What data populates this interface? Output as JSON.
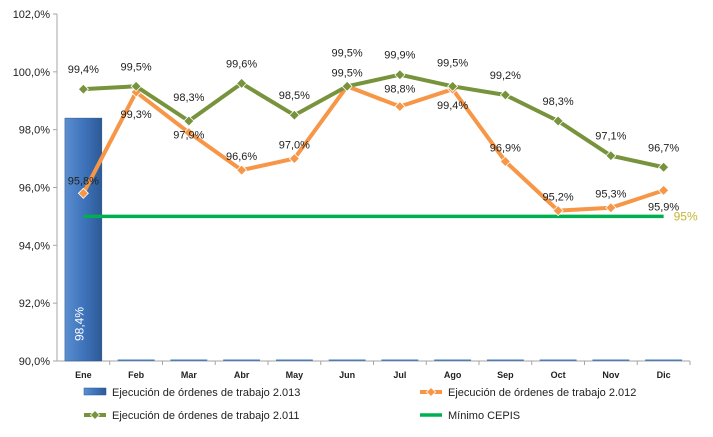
{
  "chart_data": {
    "type": "bar+line",
    "categories": [
      "Ene",
      "Feb",
      "Mar",
      "Abr",
      "May",
      "Jun",
      "Jul",
      "Ago",
      "Sep",
      "Oct",
      "Nov",
      "Dic"
    ],
    "ylim": [
      90,
      102
    ],
    "yticks": [
      "90,0%",
      "92,0%",
      "94,0%",
      "96,0%",
      "98,0%",
      "100,0%",
      "102,0%"
    ],
    "grid": false,
    "legend_position": "bottom",
    "series": [
      {
        "name": "Ejecución de órdenes de trabajo 2.013",
        "kind": "bar",
        "color": "#4a7ebb",
        "values": [
          98.4,
          null,
          null,
          null,
          null,
          null,
          null,
          null,
          null,
          null,
          null,
          null
        ],
        "labels": [
          "98,4%",
          "",
          "",
          "",
          "",
          "",
          "",
          "",
          "",
          "",
          "",
          ""
        ]
      },
      {
        "name": "Ejecución de órdenes de trabajo 2.012",
        "kind": "line",
        "color": "#f79646",
        "values": [
          95.8,
          99.3,
          97.9,
          96.6,
          97.0,
          99.5,
          98.8,
          99.4,
          96.9,
          95.2,
          95.3,
          95.9
        ],
        "labels": [
          "95,8%",
          "99,3%",
          "97,9%",
          "96,6%",
          "97,0%",
          "99,5%",
          "98,8%",
          "99,4%",
          "96,9%",
          "95,2%",
          "95,3%",
          "95,9%"
        ]
      },
      {
        "name": "Ejecución de órdenes de trabajo 2.011",
        "kind": "line",
        "color": "#77933c",
        "values": [
          99.4,
          99.5,
          98.3,
          99.6,
          98.5,
          99.5,
          99.9,
          99.5,
          99.2,
          98.3,
          97.1,
          96.7
        ],
        "labels": [
          "99,4%",
          "99,5%",
          "98,3%",
          "99,6%",
          "98,5%",
          "99,5%",
          "99,9%",
          "99,5%",
          "99,2%",
          "98,3%",
          "97,1%",
          "96,7%"
        ]
      },
      {
        "name": "Mínimo CEPIS",
        "kind": "line",
        "color": "#00b050",
        "values": [
          95,
          95,
          95,
          95,
          95,
          95,
          95,
          95,
          95,
          95,
          95,
          95
        ],
        "end_label": "95%",
        "end_label_color": "#c8b432"
      }
    ]
  }
}
